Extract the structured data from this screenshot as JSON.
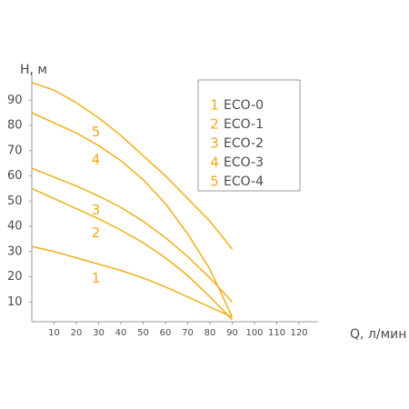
{
  "chart_data": {
    "type": "line",
    "y_label": "H, м",
    "x_label": "Q, л/мин",
    "x": [
      0,
      10,
      20,
      30,
      40,
      50,
      60,
      70,
      80,
      90
    ],
    "xlim": [
      0,
      130
    ],
    "ylim": [
      0,
      100
    ],
    "xticks": [
      10,
      20,
      30,
      40,
      50,
      60,
      70,
      80,
      90,
      100,
      110,
      120
    ],
    "yticks": [
      10,
      20,
      30,
      40,
      50,
      60,
      70,
      80,
      90
    ],
    "series": [
      {
        "label": "1",
        "name": "ECO-0",
        "color": "#f0b323",
        "values": [
          32,
          30,
          27.5,
          25,
          22.5,
          19.5,
          16,
          12,
          8,
          4
        ]
      },
      {
        "label": "2",
        "name": "ECO-1",
        "color": "#f0b323",
        "values": [
          55,
          51,
          47,
          43,
          38.5,
          33.5,
          27.5,
          20.5,
          12,
          3
        ]
      },
      {
        "label": "3",
        "name": "ECO-2",
        "color": "#f0b323",
        "values": [
          63,
          59.5,
          56,
          52,
          47.5,
          42,
          35.5,
          28,
          19.5,
          10
        ]
      },
      {
        "label": "4",
        "name": "ECO-3",
        "color": "#f0b323",
        "values": [
          85,
          81,
          77,
          72,
          66,
          58.5,
          49,
          37,
          23,
          4
        ]
      },
      {
        "label": "5",
        "name": "ECO-4",
        "color": "#f0b323",
        "values": [
          97,
          94,
          89,
          83,
          76,
          68,
          60,
          51,
          42,
          31
        ]
      }
    ]
  }
}
